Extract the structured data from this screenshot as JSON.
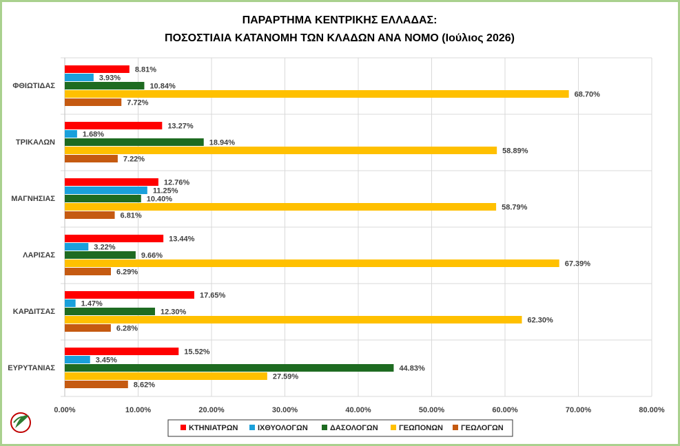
{
  "chart_data": {
    "type": "hbar",
    "title": [
      "ΠΑΡΑΡΤΗΜΑ ΚΕΝΤΡΙΚΗΣ ΕΛΛΑΔΑΣ:",
      "ΠΟΣΟΣΤΙΑΙΑ ΚΑΤΑΝΟΜΗ ΤΩΝ ΚΛΑΔΩΝ ΑΝΑ ΝΟΜΟ (Ιούλιος 2026)"
    ],
    "categories": [
      "ΦΘΙΩΤΙΔΑΣ",
      "ΤΡΙΚΑΛΩΝ",
      "ΜΑΓΝΗΣΙΑΣ",
      "ΛΑΡΙΣΑΣ",
      "ΚΑΡΔΙΤΣΑΣ",
      "ΕΥΡΥΤΑΝΙΑΣ"
    ],
    "series": [
      {
        "name": "ΚΤΗΝΙΑΤΡΩΝ",
        "color": "#ff0000",
        "values": [
          8.81,
          13.27,
          12.76,
          13.44,
          17.65,
          15.52
        ],
        "value_labels": [
          "8.81%",
          "13.27%",
          "12.76%",
          "13.44%",
          "17.65%",
          "15.52%"
        ]
      },
      {
        "name": "ΙΧΘΥΟΛΟΓΩΝ",
        "color": "#1aa0db",
        "values": [
          3.93,
          1.68,
          11.25,
          3.22,
          1.47,
          3.45
        ],
        "value_labels": [
          "3.93%",
          "1.68%",
          "11.25%",
          "3.22%",
          "1.47%",
          "3.45%"
        ]
      },
      {
        "name": "ΔΑΣΟΛΟΓΩΝ",
        "color": "#1e6b21",
        "values": [
          10.84,
          18.94,
          10.4,
          9.66,
          12.3,
          44.83
        ],
        "value_labels": [
          "10.84%",
          "18.94%",
          "10.40%",
          "9.66%",
          "12.30%",
          "44.83%"
        ]
      },
      {
        "name": "ΓΕΩΠΟΝΩΝ",
        "color": "#ffc000",
        "values": [
          68.7,
          58.89,
          58.79,
          67.39,
          62.3,
          27.59
        ],
        "value_labels": [
          "68.70%",
          "58.89%",
          "58.79%",
          "67.39%",
          "62.30%",
          "27.59%"
        ]
      },
      {
        "name": "ΓΕΩΛΟΓΩΝ",
        "color": "#c55a11",
        "values": [
          7.72,
          7.22,
          6.81,
          6.29,
          6.28,
          8.62
        ],
        "value_labels": [
          "7.72%",
          "7.22%",
          "6.81%",
          "6.29%",
          "6.28%",
          "8.62%"
        ]
      }
    ],
    "xlim": [
      0,
      80
    ],
    "xticks": [
      {
        "value": 0,
        "label": "0.00%"
      },
      {
        "value": 10,
        "label": "10.00%"
      },
      {
        "value": 20,
        "label": "20.00%"
      },
      {
        "value": 30,
        "label": "30.00%"
      },
      {
        "value": 40,
        "label": "40.00%"
      },
      {
        "value": 50,
        "label": "50.00%"
      },
      {
        "value": 60,
        "label": "60.00%"
      },
      {
        "value": 70,
        "label": "70.00%"
      },
      {
        "value": 80,
        "label": "80.00%"
      }
    ],
    "grid": true,
    "legend": "bottom"
  }
}
